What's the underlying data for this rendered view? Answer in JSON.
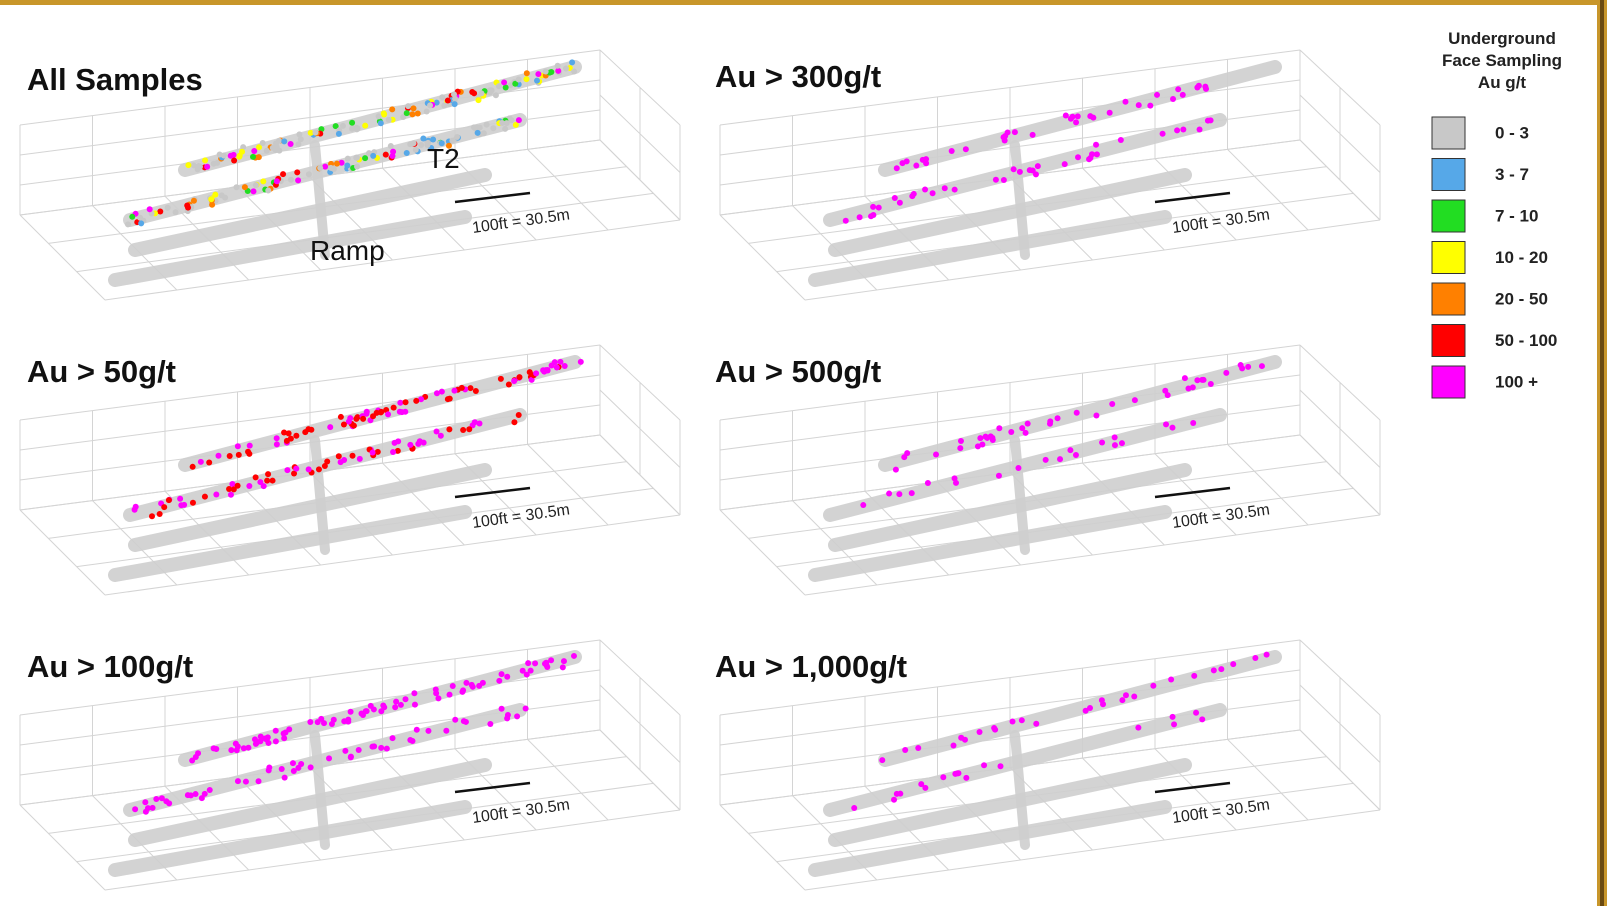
{
  "panels": [
    {
      "title": "All Samples",
      "scale_label": "100ft = 30.5m",
      "annotations": [
        "T2",
        "Ramp"
      ]
    },
    {
      "title": "Au > 300g/t",
      "scale_label": "100ft = 30.5m"
    },
    {
      "title": "Au > 50g/t",
      "scale_label": "100ft = 30.5m"
    },
    {
      "title": "Au > 500g/t",
      "scale_label": "100ft = 30.5m"
    },
    {
      "title": "Au > 100g/t",
      "scale_label": "100ft = 30.5m"
    },
    {
      "title": "Au > 1,000g/t",
      "scale_label": "100ft = 30.5m"
    }
  ],
  "legend": {
    "title": [
      "Underground",
      "Face Sampling",
      "Au g/t"
    ],
    "items": [
      {
        "label": "0 - 3",
        "color": "#c8c8c8"
      },
      {
        "label": "3 - 7",
        "color": "#56a8e8"
      },
      {
        "label": "7 - 10",
        "color": "#22dd22"
      },
      {
        "label": "10 - 20",
        "color": "#ffff00"
      },
      {
        "label": "20 - 50",
        "color": "#ff8000"
      },
      {
        "label": "50 - 100",
        "color": "#ff0000"
      },
      {
        "label": "100 +",
        "color": "#ff00ff"
      }
    ]
  }
}
